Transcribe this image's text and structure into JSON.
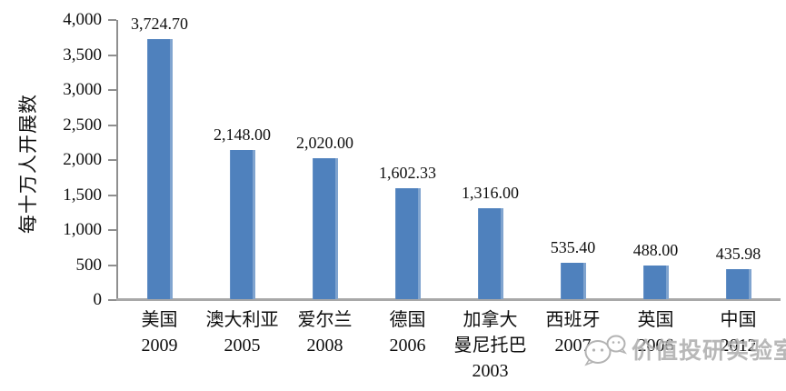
{
  "chart_data": {
    "type": "bar",
    "title": "",
    "xlabel": "",
    "ylabel": "每十万人开展数",
    "ylim": [
      0,
      4000
    ],
    "ytick_step": 500,
    "ytick_labels": [
      "0",
      "500",
      "1,000",
      "1,500",
      "2,000",
      "2,500",
      "3,000",
      "3,500",
      "4,000"
    ],
    "grid": false,
    "legend": "none",
    "bar_color": "#4F81BD",
    "categories": [
      "美国 2009",
      "澳大利亚 2005",
      "爱尔兰 2008",
      "德国 2006",
      "加拿大曼尼托巴 2003",
      "西班牙 2007",
      "英国 2006",
      "中国 2012"
    ],
    "category_lines": [
      [
        "美国",
        "2009"
      ],
      [
        "澳大利亚",
        "2005"
      ],
      [
        "爱尔兰",
        "2008"
      ],
      [
        "德国",
        "2006"
      ],
      [
        "加拿大",
        "曼尼托巴",
        "2003"
      ],
      [
        "西班牙",
        "2007"
      ],
      [
        "英国",
        "2006"
      ],
      [
        "中国",
        "2012"
      ]
    ],
    "values": [
      3724.7,
      2148.0,
      2020.0,
      1602.33,
      1316.0,
      535.4,
      488.0,
      435.98
    ],
    "value_labels": [
      "3,724.70",
      "2,148.00",
      "2,020.00",
      "1,602.33",
      "1,316.00",
      "535.40",
      "488.00",
      "435.98"
    ]
  },
  "watermark": {
    "text": "价值投研实验室",
    "icon": "wechat-icon",
    "color": "#a9a9a9"
  }
}
